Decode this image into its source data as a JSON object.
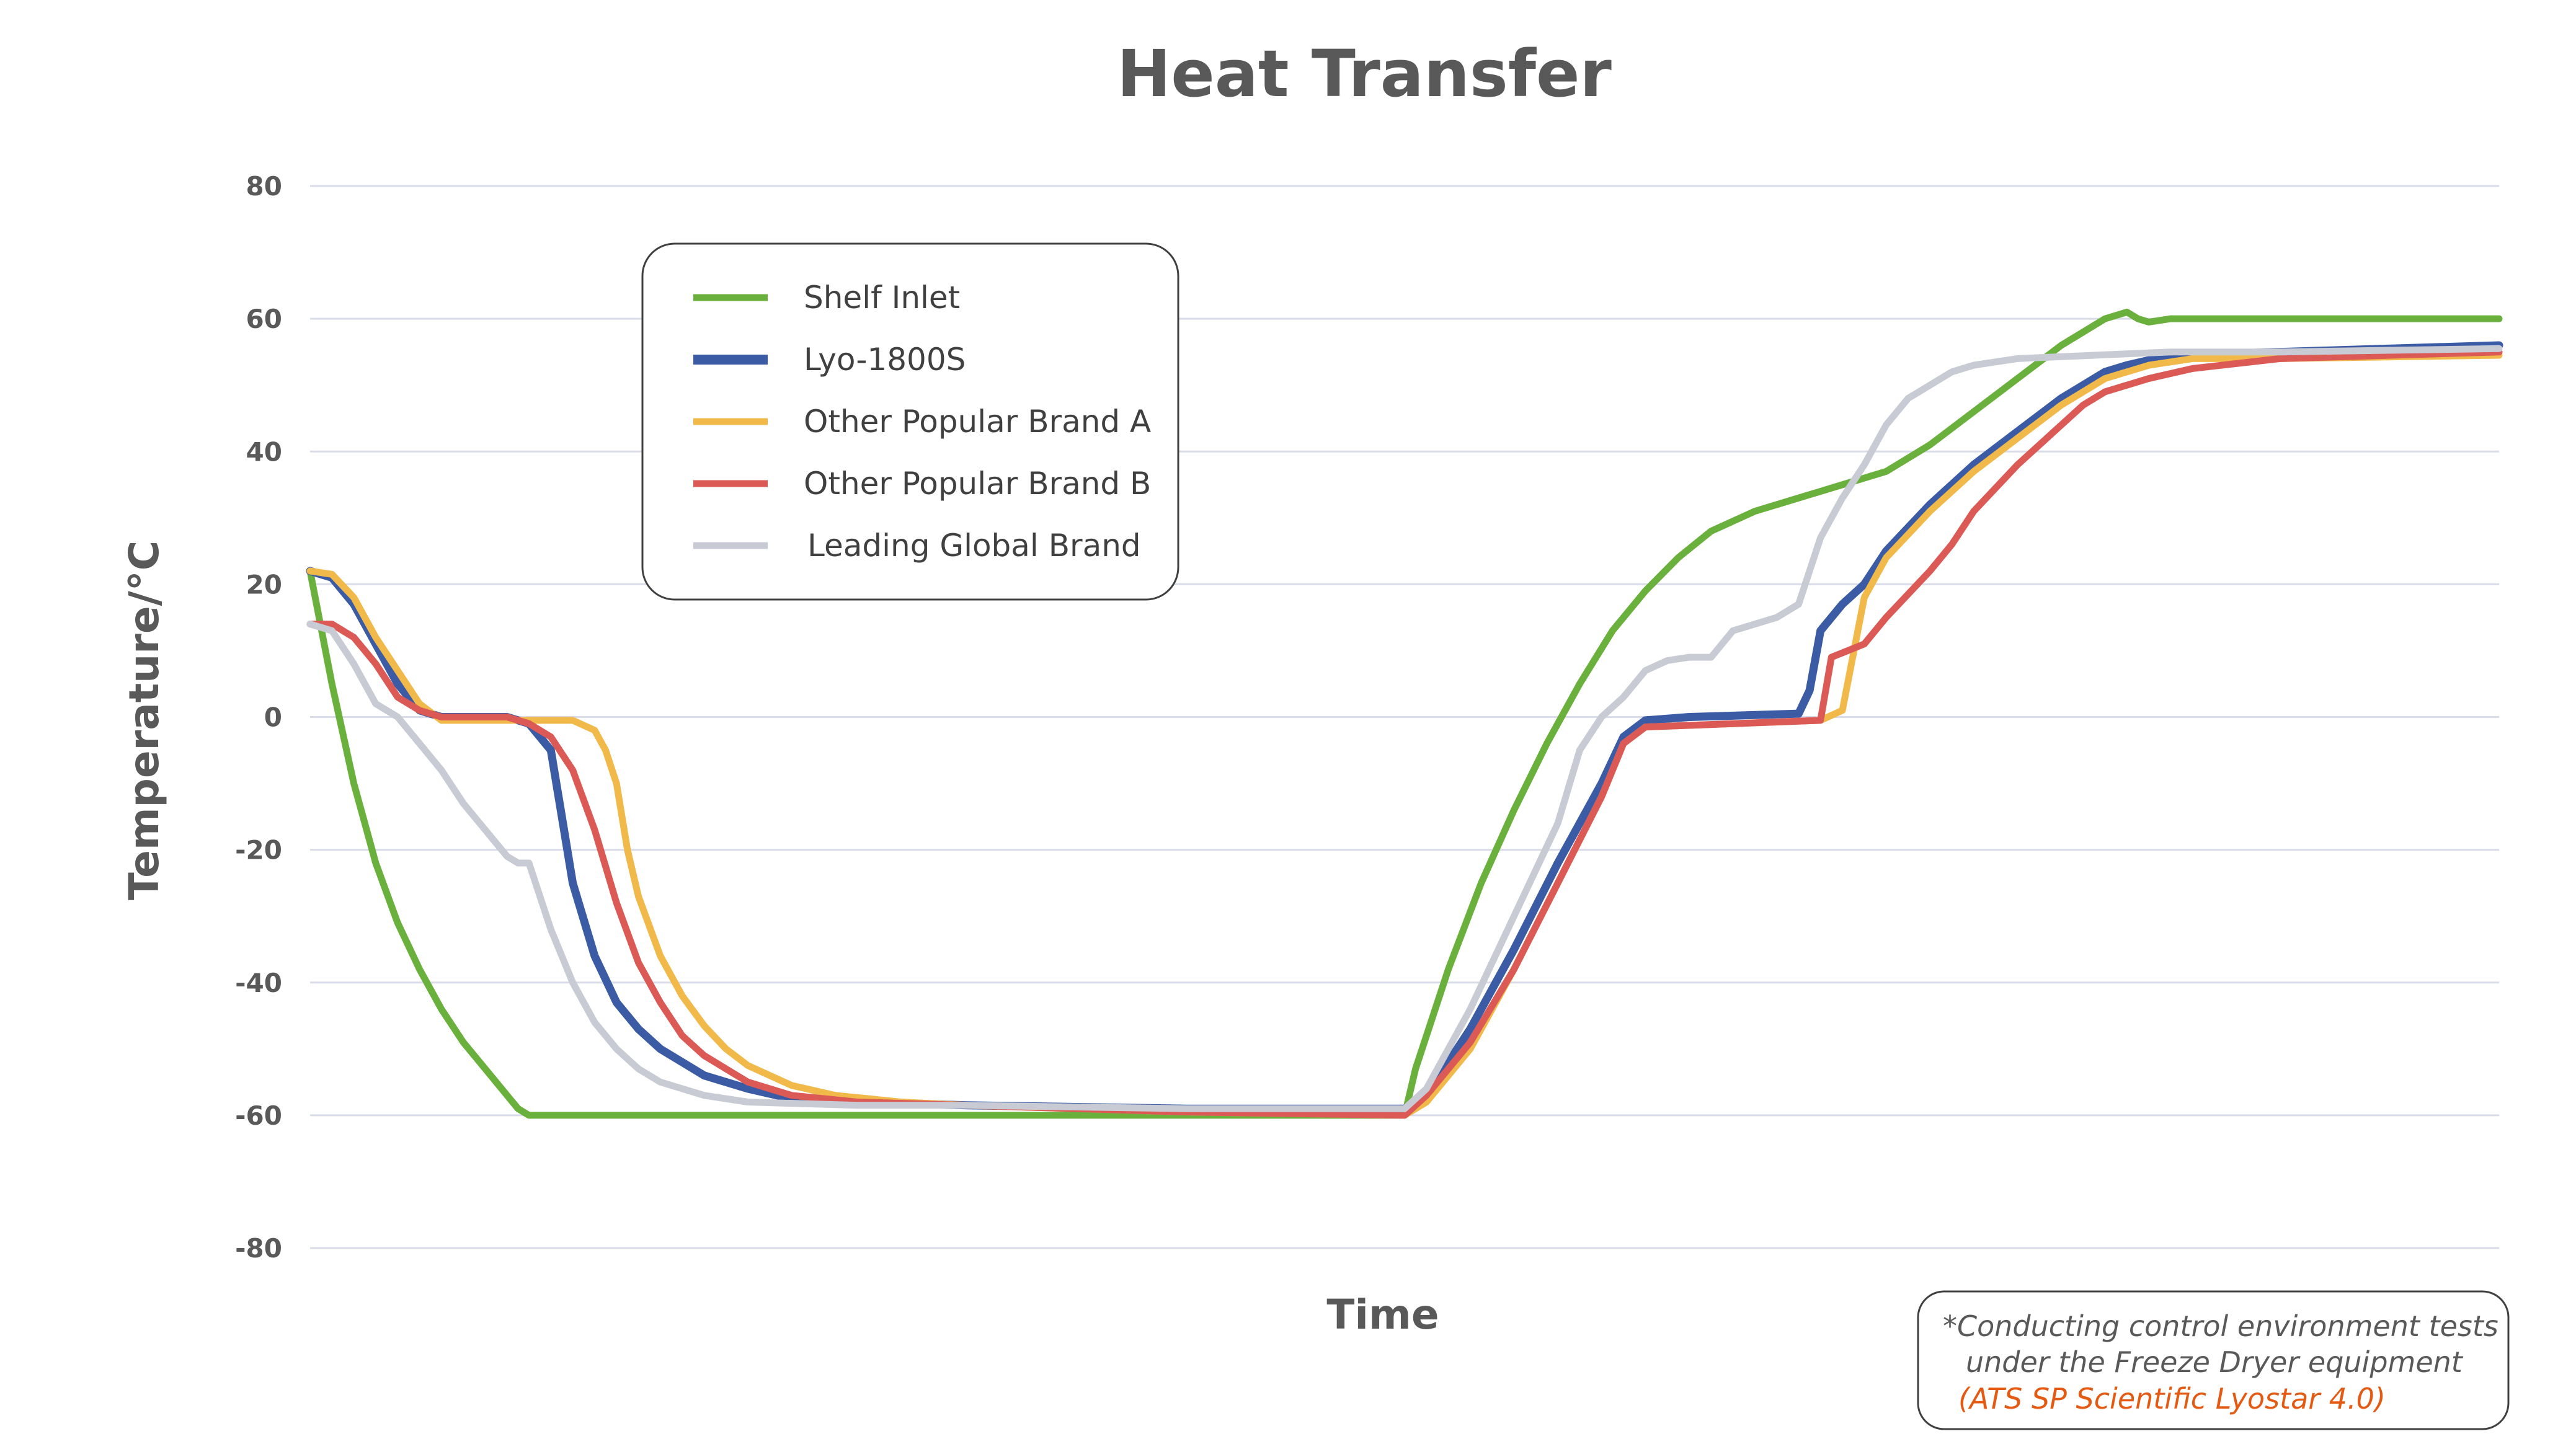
{
  "chart_data": {
    "type": "line",
    "title": "Heat Transfer",
    "xlabel": "Time",
    "ylabel": "Temperature/°C",
    "ylim": [
      -80,
      80
    ],
    "yticks": [
      80,
      60,
      40,
      20,
      0,
      -20,
      -40,
      -60,
      -80
    ],
    "xlim": [
      0,
      100
    ],
    "grid": true,
    "legend_position": "top-left",
    "series": [
      {
        "name": "Shelf Inlet",
        "color": "#6ab03c",
        "points": [
          [
            0,
            22
          ],
          [
            1,
            5
          ],
          [
            2,
            -10
          ],
          [
            3,
            -22
          ],
          [
            4,
            -31
          ],
          [
            5,
            -38
          ],
          [
            6,
            -44
          ],
          [
            7,
            -49
          ],
          [
            8,
            -53
          ],
          [
            9,
            -57
          ],
          [
            9.5,
            -59
          ],
          [
            10,
            -60
          ],
          [
            12,
            -60
          ],
          [
            30,
            -60
          ],
          [
            50,
            -60
          ],
          [
            50.5,
            -53
          ],
          [
            52,
            -38
          ],
          [
            53.5,
            -25
          ],
          [
            55,
            -14
          ],
          [
            56.5,
            -4
          ],
          [
            58,
            5
          ],
          [
            59.5,
            13
          ],
          [
            61,
            19
          ],
          [
            62.5,
            24
          ],
          [
            64,
            28
          ],
          [
            66,
            31
          ],
          [
            68,
            33
          ],
          [
            70,
            35
          ],
          [
            72,
            37
          ],
          [
            74,
            41
          ],
          [
            76,
            46
          ],
          [
            78,
            51
          ],
          [
            80,
            56
          ],
          [
            82,
            60
          ],
          [
            83,
            61
          ],
          [
            83.5,
            60
          ],
          [
            84,
            59.5
          ],
          [
            85,
            60
          ],
          [
            90,
            60
          ],
          [
            100,
            60
          ]
        ]
      },
      {
        "name": "Lyo-1800S",
        "color": "#3b5ba5",
        "points": [
          [
            0,
            22
          ],
          [
            1,
            21
          ],
          [
            2,
            17
          ],
          [
            3,
            11
          ],
          [
            4,
            5
          ],
          [
            5,
            1
          ],
          [
            6,
            0
          ],
          [
            9,
            0
          ],
          [
            10,
            -1
          ],
          [
            11,
            -5
          ],
          [
            11.5,
            -15
          ],
          [
            12,
            -25
          ],
          [
            13,
            -36
          ],
          [
            14,
            -43
          ],
          [
            15,
            -47
          ],
          [
            16,
            -50
          ],
          [
            18,
            -54
          ],
          [
            20,
            -56
          ],
          [
            22,
            -57.5
          ],
          [
            25,
            -58
          ],
          [
            30,
            -58.5
          ],
          [
            40,
            -59
          ],
          [
            50,
            -59
          ],
          [
            51,
            -57
          ],
          [
            53,
            -47
          ],
          [
            55,
            -35
          ],
          [
            57,
            -22
          ],
          [
            59,
            -10
          ],
          [
            60,
            -3
          ],
          [
            61,
            -0.5
          ],
          [
            63,
            0
          ],
          [
            68,
            0.5
          ],
          [
            68.5,
            4
          ],
          [
            69,
            13
          ],
          [
            70,
            17
          ],
          [
            71,
            20
          ],
          [
            72,
            25
          ],
          [
            74,
            32
          ],
          [
            76,
            38
          ],
          [
            78,
            43
          ],
          [
            80,
            48
          ],
          [
            82,
            52
          ],
          [
            83,
            53
          ],
          [
            85,
            54.5
          ],
          [
            90,
            55
          ],
          [
            100,
            56
          ]
        ]
      },
      {
        "name": "Other Popular Brand A",
        "color": "#f0b94a",
        "points": [
          [
            0,
            22
          ],
          [
            1,
            21.5
          ],
          [
            2,
            18
          ],
          [
            3,
            12
          ],
          [
            4,
            7
          ],
          [
            5,
            2
          ],
          [
            6,
            -0.5
          ],
          [
            10,
            -0.5
          ],
          [
            12,
            -0.5
          ],
          [
            13,
            -2
          ],
          [
            13.5,
            -5
          ],
          [
            14,
            -10
          ],
          [
            14.5,
            -20
          ],
          [
            15,
            -27
          ],
          [
            16,
            -36
          ],
          [
            17,
            -42
          ],
          [
            18,
            -46.5
          ],
          [
            19,
            -50
          ],
          [
            20,
            -52.5
          ],
          [
            22,
            -55.5
          ],
          [
            24,
            -57
          ],
          [
            27,
            -58
          ],
          [
            30,
            -58.5
          ],
          [
            40,
            -59.5
          ],
          [
            50,
            -60
          ],
          [
            51,
            -58
          ],
          [
            53,
            -50
          ],
          [
            55,
            -38
          ],
          [
            57,
            -25
          ],
          [
            59,
            -12
          ],
          [
            60,
            -4
          ],
          [
            61,
            -1.5
          ],
          [
            65,
            -1
          ],
          [
            69,
            -0.5
          ],
          [
            70,
            1
          ],
          [
            71,
            18
          ],
          [
            72,
            24
          ],
          [
            74,
            31
          ],
          [
            76,
            37
          ],
          [
            78,
            42
          ],
          [
            80,
            47
          ],
          [
            82,
            51
          ],
          [
            84,
            53
          ],
          [
            86,
            54
          ],
          [
            90,
            54
          ],
          [
            100,
            54.5
          ]
        ]
      },
      {
        "name": "Other Popular Brand B",
        "color": "#db5a56",
        "points": [
          [
            0,
            14
          ],
          [
            1,
            14
          ],
          [
            2,
            12
          ],
          [
            3,
            8
          ],
          [
            4,
            3
          ],
          [
            5,
            1
          ],
          [
            6,
            0
          ],
          [
            9,
            0
          ],
          [
            10,
            -1
          ],
          [
            11,
            -3
          ],
          [
            12,
            -8
          ],
          [
            13,
            -17
          ],
          [
            14,
            -28
          ],
          [
            15,
            -37
          ],
          [
            16,
            -43
          ],
          [
            17,
            -48
          ],
          [
            18,
            -51
          ],
          [
            19,
            -53
          ],
          [
            20,
            -55
          ],
          [
            22,
            -57
          ],
          [
            25,
            -58
          ],
          [
            30,
            -58.5
          ],
          [
            40,
            -59.5
          ],
          [
            50,
            -60
          ],
          [
            51,
            -57
          ],
          [
            53,
            -49
          ],
          [
            55,
            -38
          ],
          [
            57,
            -25
          ],
          [
            59,
            -12
          ],
          [
            60,
            -4
          ],
          [
            61,
            -1.5
          ],
          [
            65,
            -1
          ],
          [
            69,
            -0.5
          ],
          [
            69.5,
            9
          ],
          [
            71,
            11
          ],
          [
            72,
            15
          ],
          [
            74,
            22
          ],
          [
            75,
            26
          ],
          [
            76,
            31
          ],
          [
            78,
            38
          ],
          [
            80,
            44
          ],
          [
            81,
            47
          ],
          [
            82,
            49
          ],
          [
            84,
            51
          ],
          [
            86,
            52.5
          ],
          [
            90,
            54
          ],
          [
            100,
            55
          ]
        ]
      },
      {
        "name": "Leading Global Brand",
        "color": "#c8cad4",
        "points": [
          [
            0,
            14
          ],
          [
            1,
            13
          ],
          [
            2,
            8
          ],
          [
            3,
            2
          ],
          [
            4,
            0
          ],
          [
            5,
            -4
          ],
          [
            6,
            -8
          ],
          [
            7,
            -13
          ],
          [
            8,
            -17
          ],
          [
            9,
            -21
          ],
          [
            9.5,
            -22
          ],
          [
            10,
            -22
          ],
          [
            11,
            -32
          ],
          [
            12,
            -40
          ],
          [
            13,
            -46
          ],
          [
            14,
            -50
          ],
          [
            15,
            -53
          ],
          [
            16,
            -55
          ],
          [
            18,
            -57
          ],
          [
            20,
            -58
          ],
          [
            25,
            -58.5
          ],
          [
            30,
            -58.5
          ],
          [
            40,
            -59
          ],
          [
            50,
            -59
          ],
          [
            51,
            -56
          ],
          [
            53,
            -44
          ],
          [
            55,
            -30
          ],
          [
            57,
            -16
          ],
          [
            58,
            -5
          ],
          [
            59,
            0
          ],
          [
            60,
            3
          ],
          [
            61,
            7
          ],
          [
            62,
            8.5
          ],
          [
            63,
            9
          ],
          [
            64,
            9
          ],
          [
            65,
            13
          ],
          [
            66,
            14
          ],
          [
            67,
            15
          ],
          [
            68,
            17
          ],
          [
            69,
            27
          ],
          [
            70,
            33
          ],
          [
            71,
            38
          ],
          [
            72,
            44
          ],
          [
            73,
            48
          ],
          [
            74,
            50
          ],
          [
            75,
            52
          ],
          [
            76,
            53
          ],
          [
            78,
            54
          ],
          [
            85,
            55
          ],
          [
            90,
            55
          ],
          [
            100,
            55.5
          ]
        ]
      }
    ]
  },
  "note": {
    "line1": "*Conducting control environment tests",
    "line2": "under the Freeze Dryer equipment",
    "line3": "(ATS SP Scientific Lyostar 4.0)"
  }
}
